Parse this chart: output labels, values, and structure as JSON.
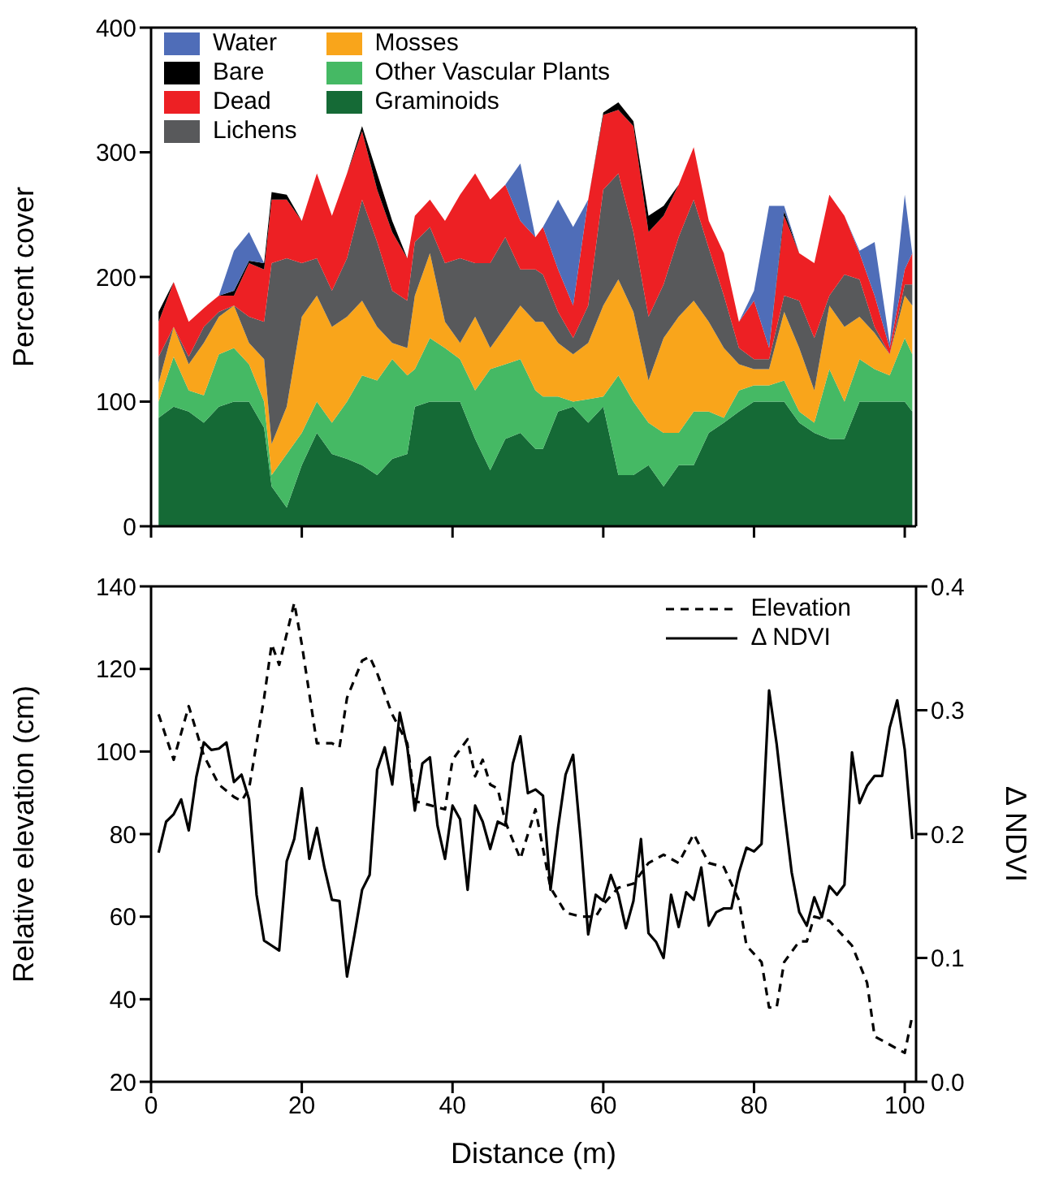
{
  "chart_data": [
    {
      "type": "area",
      "stacked": true,
      "ylabel": "Percent cover",
      "legend": "top left",
      "tick_labels": "y",
      "xlim": [
        0,
        101.5
      ],
      "xticks": [
        0,
        20,
        40,
        60,
        80,
        100
      ],
      "ylim": [
        0,
        400
      ],
      "yticks": [
        0,
        100,
        200,
        300,
        400
      ],
      "x": [
        1,
        3,
        5,
        7,
        9,
        11,
        13,
        15,
        16,
        18,
        20,
        22,
        24,
        26,
        28,
        30,
        32,
        34,
        35,
        37,
        39,
        41,
        43,
        45,
        47,
        49,
        51,
        52,
        54,
        56,
        58,
        60,
        62,
        64,
        66,
        68,
        70,
        72,
        74,
        76,
        78,
        80,
        82,
        84,
        86,
        88,
        90,
        92,
        94,
        96,
        98,
        100,
        101
      ],
      "series": [
        {
          "name": "Graminoids",
          "color": "#156a36",
          "values": [
            87,
            96,
            92,
            83,
            96,
            100,
            100,
            79,
            32,
            15,
            49,
            75,
            58,
            54,
            49,
            41,
            54,
            58,
            96,
            100,
            100,
            100,
            70,
            45,
            70,
            75,
            62,
            62,
            92,
            96,
            83,
            96,
            41,
            41,
            49,
            32,
            49,
            49,
            75,
            83,
            92,
            100,
            100,
            100,
            83,
            75,
            70,
            70,
            100,
            100,
            100,
            100,
            92
          ]
        },
        {
          "name": "Other Vascular Plants",
          "color": "#45b964",
          "values": [
            13,
            40,
            17,
            22,
            42,
            43,
            30,
            21,
            9,
            43,
            26,
            25,
            25,
            46,
            72,
            76,
            80,
            63,
            30,
            51,
            43,
            34,
            39,
            81,
            60,
            59,
            47,
            42,
            12,
            4,
            19,
            8,
            80,
            59,
            34,
            43,
            26,
            43,
            17,
            4,
            17,
            13,
            13,
            17,
            9,
            8,
            56,
            30,
            34,
            26,
            21,
            51,
            46
          ]
        },
        {
          "name": "Mosses",
          "color": "#f9a51b",
          "values": [
            15,
            24,
            21,
            42,
            30,
            34,
            17,
            34,
            25,
            38,
            93,
            85,
            77,
            68,
            60,
            43,
            13,
            22,
            59,
            68,
            21,
            13,
            59,
            17,
            30,
            43,
            55,
            60,
            43,
            38,
            45,
            73,
            77,
            72,
            34,
            76,
            93,
            89,
            72,
            56,
            21,
            13,
            13,
            55,
            51,
            26,
            51,
            60,
            34,
            29,
            17,
            34,
            39
          ]
        },
        {
          "name": "Lichens",
          "color": "#58595b",
          "values": [
            21,
            0,
            6,
            13,
            4,
            0,
            21,
            30,
            145,
            119,
            43,
            30,
            29,
            47,
            81,
            68,
            42,
            38,
            43,
            21,
            47,
            68,
            43,
            68,
            72,
            29,
            42,
            38,
            25,
            13,
            30,
            93,
            85,
            64,
            51,
            43,
            64,
            81,
            59,
            42,
            13,
            8,
            8,
            13,
            38,
            42,
            8,
            42,
            30,
            5,
            0,
            9,
            17
          ]
        },
        {
          "name": "Dead",
          "color": "#ed2024",
          "values": [
            28,
            36,
            28,
            15,
            13,
            8,
            43,
            42,
            51,
            47,
            34,
            68,
            60,
            68,
            55,
            42,
            47,
            34,
            21,
            22,
            34,
            51,
            72,
            51,
            42,
            39,
            26,
            38,
            34,
            26,
            85,
            60,
            51,
            85,
            68,
            55,
            42,
            42,
            22,
            34,
            21,
            47,
            9,
            64,
            38,
            60,
            81,
            47,
            21,
            25,
            5,
            12,
            25
          ]
        },
        {
          "name": "Bare",
          "color": "#000000",
          "values": [
            8,
            0,
            0,
            0,
            0,
            4,
            2,
            5,
            6,
            4,
            0,
            0,
            0,
            0,
            4,
            13,
            9,
            0,
            0,
            0,
            0,
            0,
            0,
            0,
            0,
            0,
            0,
            0,
            0,
            0,
            0,
            2,
            6,
            4,
            13,
            8,
            0,
            0,
            0,
            0,
            0,
            0,
            0,
            4,
            0,
            0,
            0,
            0,
            0,
            0,
            0,
            0,
            0
          ]
        },
        {
          "name": "Water",
          "color": "#4f6db8",
          "values": [
            null,
            null,
            null,
            null,
            0,
            32,
            23,
            0,
            null,
            null,
            null,
            null,
            null,
            null,
            null,
            null,
            null,
            null,
            null,
            null,
            null,
            null,
            null,
            null,
            0,
            46,
            0,
            0,
            56,
            63,
            0,
            null,
            null,
            null,
            null,
            null,
            null,
            null,
            null,
            null,
            0,
            8,
            114,
            4,
            0,
            null,
            null,
            0,
            2,
            43,
            4,
            60,
            0
          ]
        }
      ]
    },
    {
      "type": "line",
      "xlabel": "Distance (m)",
      "ylabel": "Relative elevation (cm)",
      "y2label": "Δ NDVI",
      "legend": "top right",
      "xlim": [
        0,
        101.5
      ],
      "xticks": [
        0,
        20,
        40,
        60,
        80,
        100
      ],
      "ylim": [
        20,
        140
      ],
      "yticks": [
        20,
        40,
        60,
        80,
        100,
        120,
        140
      ],
      "y2lim": [
        0,
        0.4
      ],
      "y2ticks": [
        {
          "value": 0,
          "label": "0.0"
        },
        0.1,
        0.2,
        0.3,
        0.4
      ],
      "series": [
        {
          "name": "Elevation",
          "color": "#000000",
          "line_style": "dashed",
          "x": [
            1,
            3,
            5,
            7,
            9,
            11,
            12,
            13,
            15,
            16,
            17,
            19,
            20,
            22,
            24,
            25,
            26,
            28,
            29,
            30,
            32,
            34,
            35,
            37,
            39,
            40,
            42,
            43,
            44,
            45,
            46,
            47,
            49,
            51,
            53,
            55,
            57,
            59,
            60,
            62,
            64,
            66,
            68,
            70,
            72,
            74,
            76,
            78,
            79,
            81,
            82,
            83,
            84,
            86,
            87,
            88,
            90,
            91,
            93,
            95,
            96,
            97,
            100,
            101
          ],
          "values": [
            109,
            98,
            111,
            99,
            92,
            89,
            88,
            91,
            113,
            126,
            121,
            136,
            126,
            102,
            102,
            101,
            113,
            122,
            123,
            119,
            109,
            102,
            88,
            87,
            86,
            98,
            103,
            94,
            98,
            92,
            91,
            83,
            74,
            86,
            67,
            61,
            60,
            60,
            63,
            67,
            68,
            73,
            75,
            73,
            80,
            73,
            72,
            64,
            53,
            49,
            38,
            38,
            49,
            54,
            54,
            60,
            59,
            57,
            53,
            44,
            31,
            30,
            27,
            36
          ]
        },
        {
          "name": "Δ NDVI",
          "color": "#000000",
          "line_style": "solid",
          "axis": "y2",
          "x": [
            1,
            2,
            3,
            4,
            5,
            6,
            7,
            8,
            9,
            10,
            11,
            12,
            13,
            14,
            15,
            16,
            17,
            18,
            19,
            20,
            21,
            22,
            23,
            24,
            25,
            26,
            27,
            28,
            29,
            30,
            31,
            32,
            33,
            34,
            35,
            36,
            37,
            38,
            39,
            40,
            41,
            42,
            43,
            44,
            45,
            46,
            47,
            48,
            49,
            50,
            51,
            52,
            53,
            54,
            55,
            56,
            57,
            58,
            59,
            60,
            61,
            62,
            63,
            64,
            65,
            66,
            67,
            68,
            69,
            70,
            71,
            72,
            73,
            74,
            75,
            76,
            77,
            78,
            79,
            80,
            81,
            82,
            83,
            84,
            85,
            86,
            87,
            88,
            89,
            90,
            91,
            92,
            93,
            94,
            95,
            96,
            97,
            98,
            99,
            100,
            101
          ],
          "values": [
            0.185,
            0.21,
            0.216,
            0.228,
            0.203,
            0.246,
            0.274,
            0.268,
            0.269,
            0.274,
            0.242,
            0.248,
            0.228,
            0.151,
            0.114,
            0.11,
            0.106,
            0.178,
            0.196,
            0.237,
            0.18,
            0.205,
            0.173,
            0.147,
            0.146,
            0.085,
            0.119,
            0.155,
            0.167,
            0.252,
            0.27,
            0.24,
            0.298,
            0.27,
            0.219,
            0.257,
            0.262,
            0.207,
            0.18,
            0.223,
            0.212,
            0.155,
            0.223,
            0.21,
            0.188,
            0.21,
            0.207,
            0.257,
            0.279,
            0.233,
            0.236,
            0.231,
            0.155,
            0.205,
            0.248,
            0.264,
            0.196,
            0.119,
            0.151,
            0.146,
            0.167,
            0.151,
            0.124,
            0.146,
            0.196,
            0.12,
            0.113,
            0.1,
            0.151,
            0.125,
            0.153,
            0.147,
            0.173,
            0.126,
            0.137,
            0.14,
            0.14,
            0.169,
            0.189,
            0.186,
            0.192,
            0.316,
            0.273,
            0.219,
            0.169,
            0.137,
            0.126,
            0.149,
            0.133,
            0.158,
            0.151,
            0.159,
            0.266,
            0.225,
            0.239,
            0.247,
            0.247,
            0.286,
            0.308,
            0.268,
            0.196
          ]
        }
      ]
    }
  ]
}
